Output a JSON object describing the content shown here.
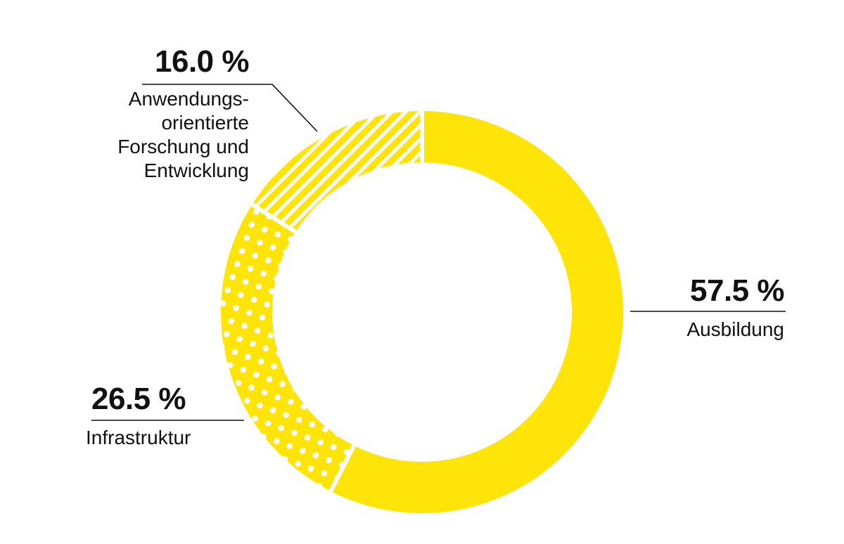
{
  "chart_data": {
    "type": "pie",
    "variant": "donut",
    "title": "",
    "categories": [
      "Ausbildung",
      "Infrastruktur",
      "Anwendungsorientierte Forschung und Entwicklung"
    ],
    "values": [
      57.5,
      26.5,
      16.0
    ],
    "unit": "%",
    "start_angle": "12 o'clock",
    "direction": "clockwise",
    "legend": "none (direct labels with leader lines)",
    "slices": [
      {
        "label": "Ausbildung",
        "value": 57.5,
        "value_label": "57.5 %",
        "fill": "solid",
        "color": "#FFE40A"
      },
      {
        "label": "Infrastruktur",
        "value": 26.5,
        "value_label": "26.5 %",
        "fill": "dots",
        "color": "#FFE40A"
      },
      {
        "label": "Anwendungsorientierte Forschung und Entwicklung",
        "value": 16.0,
        "value_label": "16.0 %",
        "fill": "diagonal-stripes",
        "color": "#FFE40A"
      }
    ]
  },
  "labels": {
    "ausbildung": {
      "pct": "57.5 %",
      "name": "Ausbildung"
    },
    "infrastruktur": {
      "pct": "26.5 %",
      "name": "Infrastruktur"
    },
    "forschung": {
      "pct": "16.0 %",
      "lines": [
        "Anwendungs-",
        "orientierte",
        "Forschung und",
        "Entwicklung"
      ]
    }
  },
  "colors": {
    "yellow": "#FFE40A",
    "text": "#111111",
    "background": "#FFFFFF"
  }
}
